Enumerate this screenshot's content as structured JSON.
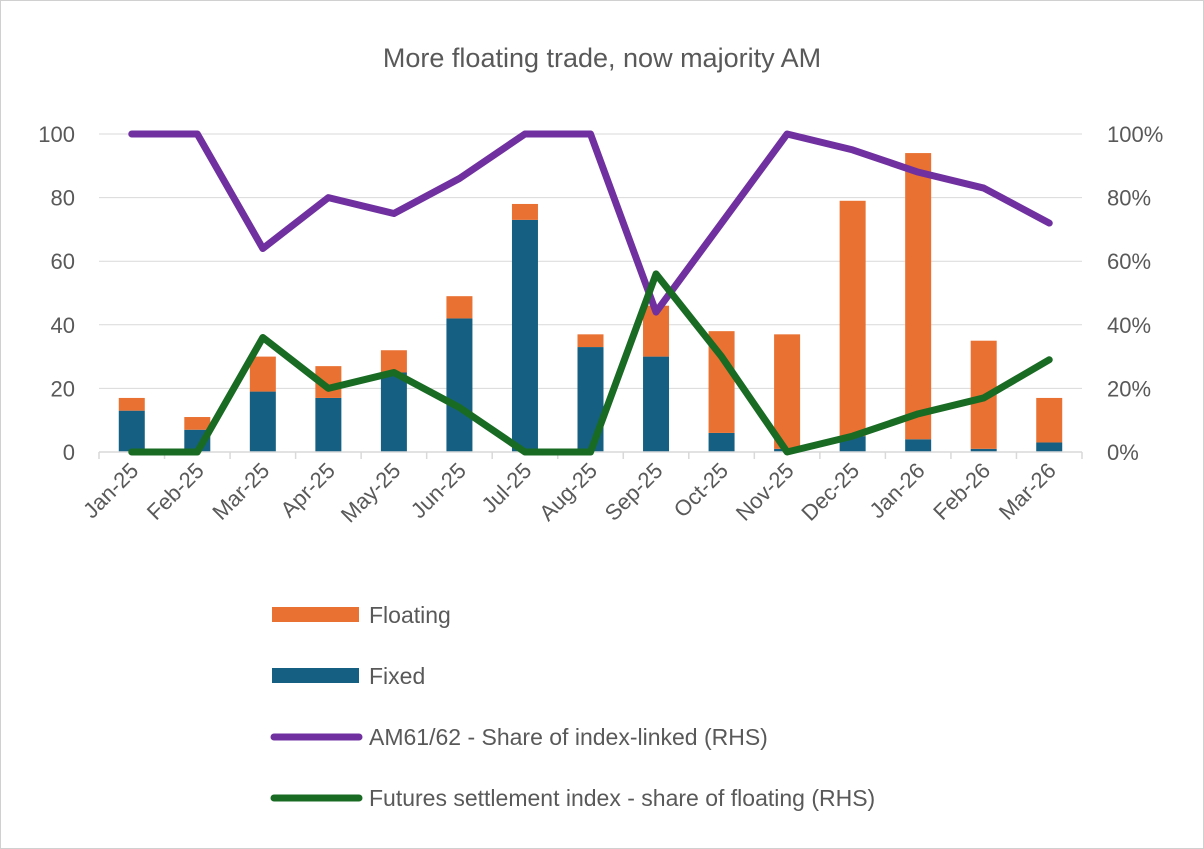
{
  "chart_data": {
    "type": "bar",
    "stacked": true,
    "title": "More floating trade, now majority AM",
    "categories": [
      "Jan-25",
      "Feb-25",
      "Mar-25",
      "Apr-25",
      "May-25",
      "Jun-25",
      "Jul-25",
      "Aug-25",
      "Sep-25",
      "Oct-25",
      "Nov-25",
      "Dec-25",
      "Jan-26",
      "Feb-26",
      "Mar-26"
    ],
    "ylim": [
      0,
      100
    ],
    "yticks": [
      "0",
      "20",
      "40",
      "60",
      "80",
      "100"
    ],
    "y2lim": [
      0,
      1
    ],
    "y2ticks": [
      "0%",
      "20%",
      "40%",
      "60%",
      "80%",
      "100%"
    ],
    "series": [
      {
        "name": "Fixed",
        "kind": "bar",
        "axis": "left",
        "color": "#156082",
        "values": [
          13,
          7,
          19,
          17,
          25,
          42,
          73,
          33,
          30,
          6,
          1,
          5,
          4,
          1,
          3
        ]
      },
      {
        "name": "Floating",
        "kind": "bar",
        "axis": "left",
        "color": "#E97132",
        "values": [
          4,
          4,
          11,
          10,
          7,
          7,
          5,
          4,
          16,
          32,
          36,
          74,
          90,
          34,
          14
        ]
      },
      {
        "name": "AM61/62 - Share of index-linked (RHS)",
        "kind": "line",
        "axis": "right",
        "color": "#7030A0",
        "values": [
          1.0,
          1.0,
          0.64,
          0.8,
          0.75,
          0.86,
          1.0,
          1.0,
          0.44,
          0.72,
          1.0,
          0.95,
          0.88,
          0.83,
          0.72
        ]
      },
      {
        "name": "Futures settlement index - share of floating (RHS)",
        "kind": "line",
        "axis": "right",
        "color": "#196B24",
        "values": [
          0.0,
          0.0,
          0.36,
          0.2,
          0.25,
          0.14,
          0.0,
          0.0,
          0.56,
          0.3,
          0.0,
          0.05,
          0.12,
          0.17,
          0.29
        ]
      }
    ],
    "legend": [
      {
        "label": "Floating",
        "series": "Floating",
        "kind": "bar"
      },
      {
        "label": "Fixed",
        "series": "Fixed",
        "kind": "bar"
      },
      {
        "label": "AM61/62 - Share of index-linked (RHS)",
        "series": "AM61/62 - Share of index-linked (RHS)",
        "kind": "line"
      },
      {
        "label": "Futures settlement index - share of floating (RHS)",
        "series": "Futures settlement index - share of floating (RHS)",
        "kind": "line"
      }
    ],
    "legend_position": "bottom",
    "grid": true
  }
}
